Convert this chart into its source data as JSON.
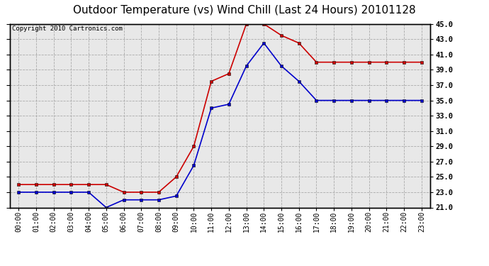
{
  "title": "Outdoor Temperature (vs) Wind Chill (Last 24 Hours) 20101128",
  "copyright": "Copyright 2010 Cartronics.com",
  "x_labels": [
    "00:00",
    "01:00",
    "02:00",
    "03:00",
    "04:00",
    "05:00",
    "06:00",
    "07:00",
    "08:00",
    "09:00",
    "10:00",
    "11:00",
    "12:00",
    "13:00",
    "14:00",
    "15:00",
    "16:00",
    "17:00",
    "18:00",
    "19:00",
    "20:00",
    "21:00",
    "22:00",
    "23:00"
  ],
  "temp_red": [
    24.0,
    24.0,
    24.0,
    24.0,
    24.0,
    24.0,
    23.0,
    23.0,
    23.0,
    25.0,
    29.0,
    37.5,
    38.5,
    45.0,
    45.0,
    43.5,
    42.5,
    40.0,
    40.0,
    40.0,
    40.0,
    40.0,
    40.0,
    40.0
  ],
  "wind_chill_blue": [
    23.0,
    23.0,
    23.0,
    23.0,
    23.0,
    21.0,
    22.0,
    22.0,
    22.0,
    22.5,
    26.5,
    34.0,
    34.5,
    39.5,
    42.5,
    39.5,
    37.5,
    35.0,
    35.0,
    35.0,
    35.0,
    35.0,
    35.0,
    35.0
  ],
  "red_color": "#cc0000",
  "blue_color": "#0000cc",
  "ylim_min": 21.0,
  "ylim_max": 45.0,
  "ytick_step": 2.0,
  "bg_color": "#ffffff",
  "plot_bg": "#e8e8e8",
  "grid_color": "#aaaaaa",
  "title_fontsize": 11,
  "copyright_fontsize": 6.5,
  "tick_fontsize": 7,
  "ytick_fontsize": 7.5
}
